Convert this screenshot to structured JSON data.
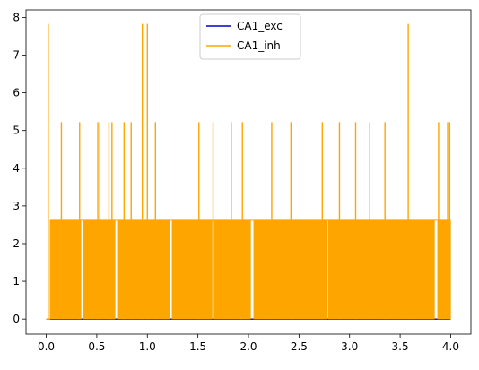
{
  "chart_data": {
    "type": "line",
    "title": "",
    "xlabel": "",
    "ylabel": "",
    "xlim": [
      -0.2,
      4.2
    ],
    "ylim": [
      -0.4,
      8.2
    ],
    "xticks": [
      "0.0",
      "0.5",
      "1.0",
      "1.5",
      "2.0",
      "2.5",
      "3.0",
      "3.5",
      "4.0"
    ],
    "yticks": [
      "0",
      "1",
      "2",
      "3",
      "4",
      "5",
      "6",
      "7",
      "8"
    ],
    "grid": false,
    "legend_position": "top-center",
    "series": [
      {
        "name": "CA1_exc",
        "color": "#0000cc",
        "x": [
          0.0,
          4.0
        ],
        "y": [
          0.0,
          0.0
        ],
        "note_hidden": true
      },
      {
        "name": "CA1_inh",
        "color": "#ffa500",
        "baseline": 0.0,
        "plateau": 2.62,
        "x_start": 0.0,
        "x_end": 4.0,
        "spikes_52": [
          0.15,
          0.33,
          0.51,
          0.53,
          0.62,
          0.65,
          0.77,
          0.84,
          1.08,
          1.51,
          1.65,
          1.83,
          1.94,
          2.23,
          2.42,
          2.73,
          2.9,
          3.06,
          3.2,
          3.35,
          3.88,
          3.97,
          3.99
        ],
        "spikes_78": [
          0.02,
          0.95,
          1.0,
          3.58
        ],
        "gaps": [
          0.35,
          0.36,
          0.69,
          0.7,
          1.23,
          1.24,
          1.65,
          2.03,
          2.04,
          2.78,
          3.85,
          3.86
        ]
      }
    ]
  }
}
